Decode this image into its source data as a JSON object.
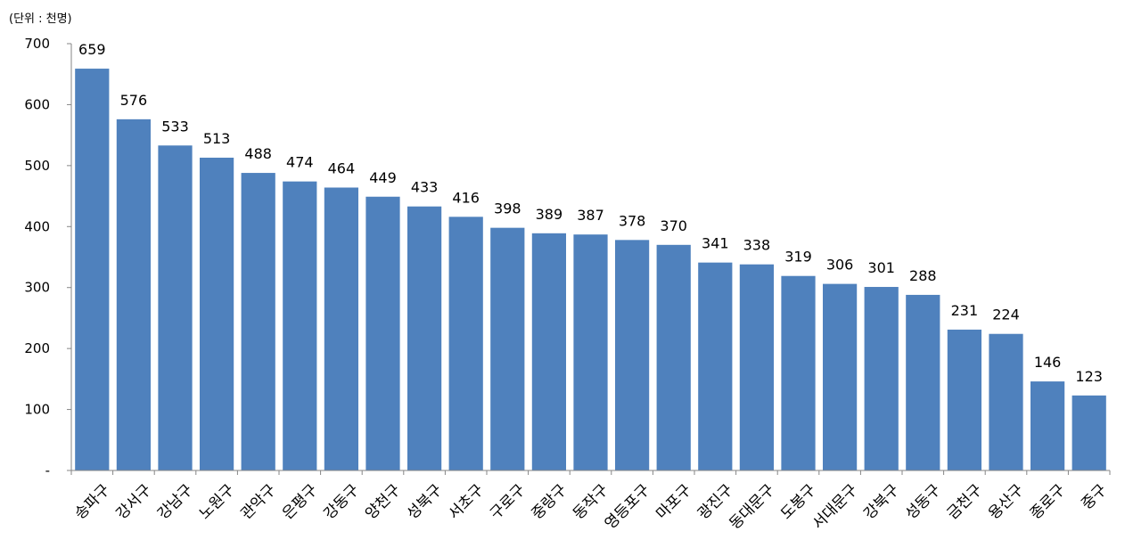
{
  "unit_label": "(단위 : 천명)",
  "chart_data": {
    "type": "bar",
    "categories": [
      "송파구",
      "강서구",
      "강남구",
      "노원구",
      "관악구",
      "은평구",
      "강동구",
      "양천구",
      "성북구",
      "서초구",
      "구로구",
      "중랑구",
      "동작구",
      "영등포구",
      "마포구",
      "광진구",
      "동대문구",
      "도봉구",
      "서대문구",
      "강북구",
      "성동구",
      "금천구",
      "용산구",
      "종로구",
      "중구"
    ],
    "values": [
      659,
      576,
      533,
      513,
      488,
      474,
      464,
      449,
      433,
      416,
      398,
      389,
      387,
      378,
      370,
      341,
      338,
      319,
      306,
      301,
      288,
      231,
      224,
      146,
      123
    ],
    "y_ticks": [
      {
        "value": 0,
        "label": "-"
      },
      {
        "value": 100,
        "label": "100"
      },
      {
        "value": 200,
        "label": "200"
      },
      {
        "value": 300,
        "label": "300"
      },
      {
        "value": 400,
        "label": "400"
      },
      {
        "value": 500,
        "label": "500"
      },
      {
        "value": 600,
        "label": "600"
      },
      {
        "value": 700,
        "label": "700"
      }
    ],
    "ylim": [
      0,
      700
    ],
    "bar_color": "#4f81bd",
    "axis_color": "#868686",
    "grid": false,
    "legend": "none"
  }
}
